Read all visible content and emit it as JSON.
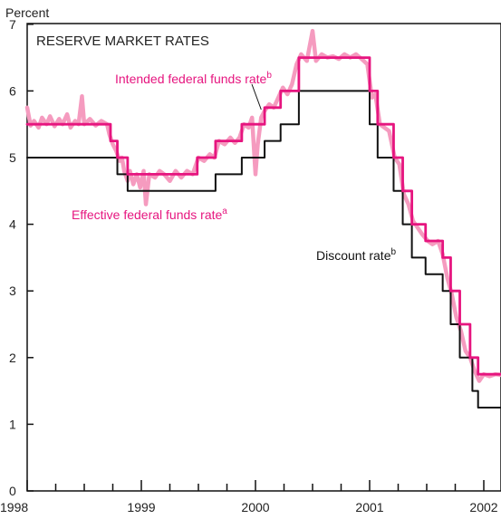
{
  "chart_data": {
    "type": "line",
    "title": "RESERVE MARKET RATES",
    "ylabel": "Percent",
    "xlabel": "",
    "ylim": [
      0,
      7
    ],
    "xlim": [
      1998.0,
      2002.15
    ],
    "y_ticks": [
      0,
      1,
      2,
      3,
      4,
      5,
      6,
      7
    ],
    "x_tick_labels": [
      {
        "x": 1998,
        "label": "1998"
      },
      {
        "x": 1999,
        "label": "1999"
      },
      {
        "x": 2000,
        "label": "2000"
      },
      {
        "x": 2001,
        "label": "2001"
      },
      {
        "x": 2002,
        "label": "2002"
      }
    ],
    "colors": {
      "effective": "#f59bbf",
      "intended": "#e6157f",
      "discount": "#111111"
    },
    "annotations": [
      {
        "text": "Intended federal funds rate",
        "sup": "b",
        "color": "#e6157f"
      },
      {
        "text": "Effective federal funds rate",
        "sup": "a",
        "color": "#e6157f"
      },
      {
        "text": "Discount rate",
        "sup": "b",
        "color": "#111111"
      }
    ],
    "series": [
      {
        "key": "discount",
        "step": true,
        "points": [
          [
            1998.0,
            5.0
          ],
          [
            1998.79,
            4.75
          ],
          [
            1998.88,
            4.5
          ],
          [
            1999.65,
            4.75
          ],
          [
            1999.88,
            5.0
          ],
          [
            2000.08,
            5.25
          ],
          [
            2000.22,
            5.5
          ],
          [
            2000.38,
            6.0
          ],
          [
            2001.0,
            5.5
          ],
          [
            2001.07,
            5.0
          ],
          [
            2001.21,
            4.5
          ],
          [
            2001.29,
            4.0
          ],
          [
            2001.37,
            3.5
          ],
          [
            2001.49,
            3.25
          ],
          [
            2001.64,
            3.0
          ],
          [
            2001.71,
            2.5
          ],
          [
            2001.79,
            2.0
          ],
          [
            2001.9,
            1.5
          ],
          [
            2001.95,
            1.25
          ],
          [
            2002.15,
            1.25
          ]
        ]
      },
      {
        "key": "intended",
        "step": true,
        "points": [
          [
            1998.0,
            5.5
          ],
          [
            1998.73,
            5.25
          ],
          [
            1998.79,
            5.0
          ],
          [
            1998.88,
            4.75
          ],
          [
            1999.49,
            5.0
          ],
          [
            1999.65,
            5.25
          ],
          [
            1999.88,
            5.5
          ],
          [
            2000.08,
            5.75
          ],
          [
            2000.22,
            6.0
          ],
          [
            2000.38,
            6.5
          ],
          [
            2001.0,
            6.0
          ],
          [
            2001.07,
            5.5
          ],
          [
            2001.21,
            5.0
          ],
          [
            2001.29,
            4.5
          ],
          [
            2001.37,
            4.0
          ],
          [
            2001.49,
            3.75
          ],
          [
            2001.64,
            3.5
          ],
          [
            2001.71,
            3.0
          ],
          [
            2001.79,
            2.5
          ],
          [
            2001.88,
            2.0
          ],
          [
            2001.95,
            1.75
          ],
          [
            2002.15,
            1.75
          ]
        ]
      },
      {
        "key": "effective",
        "step": false,
        "points": [
          [
            1998.0,
            5.75
          ],
          [
            1998.03,
            5.48
          ],
          [
            1998.06,
            5.55
          ],
          [
            1998.1,
            5.45
          ],
          [
            1998.13,
            5.6
          ],
          [
            1998.17,
            5.5
          ],
          [
            1998.2,
            5.62
          ],
          [
            1998.24,
            5.47
          ],
          [
            1998.28,
            5.58
          ],
          [
            1998.31,
            5.5
          ],
          [
            1998.35,
            5.65
          ],
          [
            1998.38,
            5.45
          ],
          [
            1998.42,
            5.55
          ],
          [
            1998.45,
            5.5
          ],
          [
            1998.48,
            5.92
          ],
          [
            1998.5,
            5.5
          ],
          [
            1998.55,
            5.58
          ],
          [
            1998.6,
            5.48
          ],
          [
            1998.65,
            5.55
          ],
          [
            1998.7,
            5.5
          ],
          [
            1998.72,
            5.35
          ],
          [
            1998.75,
            5.2
          ],
          [
            1998.78,
            5.1
          ],
          [
            1998.81,
            4.95
          ],
          [
            1998.83,
            5.0
          ],
          [
            1998.85,
            4.8
          ],
          [
            1998.88,
            4.65
          ],
          [
            1998.9,
            4.8
          ],
          [
            1998.93,
            4.6
          ],
          [
            1998.96,
            4.75
          ],
          [
            1998.99,
            4.55
          ],
          [
            1999.02,
            4.8
          ],
          [
            1999.04,
            4.3
          ],
          [
            1999.07,
            4.75
          ],
          [
            1999.12,
            4.7
          ],
          [
            1999.16,
            4.8
          ],
          [
            1999.2,
            4.75
          ],
          [
            1999.25,
            4.65
          ],
          [
            1999.3,
            4.8
          ],
          [
            1999.35,
            4.7
          ],
          [
            1999.4,
            4.8
          ],
          [
            1999.45,
            4.75
          ],
          [
            1999.5,
            5.0
          ],
          [
            1999.55,
            4.95
          ],
          [
            1999.6,
            5.05
          ],
          [
            1999.64,
            5.0
          ],
          [
            1999.68,
            5.25
          ],
          [
            1999.73,
            5.2
          ],
          [
            1999.78,
            5.3
          ],
          [
            1999.82,
            5.22
          ],
          [
            1999.86,
            5.3
          ],
          [
            1999.9,
            5.5
          ],
          [
            1999.94,
            5.45
          ],
          [
            1999.97,
            5.6
          ],
          [
            2000.0,
            4.75
          ],
          [
            2000.02,
            5.2
          ],
          [
            2000.05,
            5.6
          ],
          [
            2000.08,
            5.7
          ],
          [
            2000.12,
            5.8
          ],
          [
            2000.16,
            5.75
          ],
          [
            2000.2,
            5.9
          ],
          [
            2000.24,
            6.05
          ],
          [
            2000.28,
            5.95
          ],
          [
            2000.32,
            6.1
          ],
          [
            2000.36,
            6.4
          ],
          [
            2000.4,
            6.55
          ],
          [
            2000.45,
            6.45
          ],
          [
            2000.5,
            6.9
          ],
          [
            2000.53,
            6.45
          ],
          [
            2000.58,
            6.55
          ],
          [
            2000.63,
            6.5
          ],
          [
            2000.68,
            6.52
          ],
          [
            2000.73,
            6.48
          ],
          [
            2000.78,
            6.55
          ],
          [
            2000.83,
            6.5
          ],
          [
            2000.88,
            6.55
          ],
          [
            2000.93,
            6.48
          ],
          [
            2000.98,
            6.4
          ],
          [
            2001.02,
            5.9
          ],
          [
            2001.05,
            5.95
          ],
          [
            2001.09,
            5.5
          ],
          [
            2001.13,
            5.45
          ],
          [
            2001.17,
            5.4
          ],
          [
            2001.22,
            5.0
          ],
          [
            2001.26,
            4.9
          ],
          [
            2001.3,
            4.45
          ],
          [
            2001.34,
            4.3
          ],
          [
            2001.38,
            4.05
          ],
          [
            2001.42,
            3.95
          ],
          [
            2001.46,
            3.85
          ],
          [
            2001.51,
            3.75
          ],
          [
            2001.55,
            3.7
          ],
          [
            2001.6,
            3.75
          ],
          [
            2001.64,
            3.55
          ],
          [
            2001.68,
            3.2
          ],
          [
            2001.72,
            2.95
          ],
          [
            2001.76,
            2.6
          ],
          [
            2001.8,
            2.4
          ],
          [
            2001.84,
            2.1
          ],
          [
            2001.88,
            2.0
          ],
          [
            2001.92,
            1.8
          ],
          [
            2001.96,
            1.65
          ],
          [
            2002.0,
            1.75
          ],
          [
            2002.05,
            1.72
          ],
          [
            2002.1,
            1.75
          ],
          [
            2002.15,
            1.74
          ]
        ]
      }
    ]
  }
}
